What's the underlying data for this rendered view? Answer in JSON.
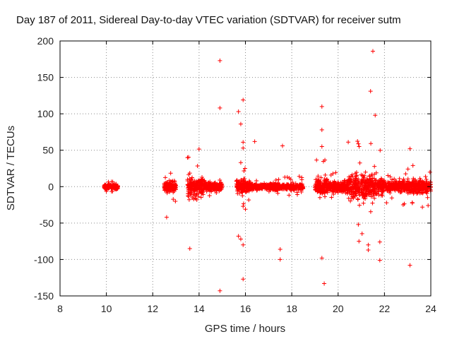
{
  "chart_data": {
    "type": "scatter",
    "title": "Day 187 of 2011, Sidereal Day-to-day VTEC variation (SDTVAR) for receiver sutm",
    "xlabel": "GPS time / hours",
    "ylabel": "SDTVAR / TECUs",
    "xlim": [
      8,
      24
    ],
    "ylim": [
      -150,
      200
    ],
    "xticks": [
      8,
      10,
      12,
      14,
      16,
      18,
      20,
      22,
      24
    ],
    "yticks": [
      -150,
      -100,
      -50,
      0,
      50,
      100,
      150,
      200
    ],
    "grid": true,
    "marker": "+",
    "color": "#ff0000",
    "clusters": [
      {
        "x_range": [
          9.9,
          10.5
        ],
        "spread": 5,
        "tail": 8
      },
      {
        "x_range": [
          12.5,
          13.0
        ],
        "spread": 10,
        "tail": 25
      },
      {
        "x_range": [
          13.5,
          14.2
        ],
        "spread": 20,
        "tail": 60
      },
      {
        "x_range": [
          14.2,
          15.0
        ],
        "spread": 8,
        "tail": 15
      },
      {
        "x_range": [
          15.6,
          16.2
        ],
        "spread": 12,
        "tail": 30
      },
      {
        "x_range": [
          16.2,
          17.5
        ],
        "spread": 6,
        "tail": 10
      },
      {
        "x_range": [
          17.5,
          18.5
        ],
        "spread": 5,
        "tail": 15
      },
      {
        "x_range": [
          19.0,
          19.6
        ],
        "spread": 15,
        "tail": 40
      },
      {
        "x_range": [
          19.6,
          20.4
        ],
        "spread": 10,
        "tail": 20
      },
      {
        "x_range": [
          20.4,
          21.2
        ],
        "spread": 25,
        "tail": 75
      },
      {
        "x_range": [
          21.2,
          21.9
        ],
        "spread": 20,
        "tail": 60
      },
      {
        "x_range": [
          21.9,
          23.0
        ],
        "spread": 10,
        "tail": 25
      },
      {
        "x_range": [
          23.0,
          24.0
        ],
        "spread": 12,
        "tail": 30
      }
    ],
    "outliers": [
      {
        "x": 14.9,
        "y": 173
      },
      {
        "x": 14.9,
        "y": 108
      },
      {
        "x": 14.9,
        "y": -143
      },
      {
        "x": 13.6,
        "y": -85
      },
      {
        "x": 15.7,
        "y": 103
      },
      {
        "x": 15.9,
        "y": 119
      },
      {
        "x": 15.9,
        "y": 61
      },
      {
        "x": 15.8,
        "y": 86
      },
      {
        "x": 15.8,
        "y": -72
      },
      {
        "x": 15.9,
        "y": -80
      },
      {
        "x": 15.9,
        "y": -127
      },
      {
        "x": 16.4,
        "y": 62
      },
      {
        "x": 17.5,
        "y": -86
      },
      {
        "x": 17.5,
        "y": -100
      },
      {
        "x": 19.3,
        "y": 110
      },
      {
        "x": 19.3,
        "y": 78
      },
      {
        "x": 19.3,
        "y": -98
      },
      {
        "x": 19.4,
        "y": -133
      },
      {
        "x": 21.5,
        "y": 186
      },
      {
        "x": 21.4,
        "y": 131
      },
      {
        "x": 21.6,
        "y": 98
      },
      {
        "x": 21.3,
        "y": -80
      },
      {
        "x": 21.3,
        "y": -87
      },
      {
        "x": 21.8,
        "y": -76
      },
      {
        "x": 21.8,
        "y": -101
      },
      {
        "x": 23.1,
        "y": -108
      },
      {
        "x": 23.1,
        "y": 52
      },
      {
        "x": 20.9,
        "y": -75
      },
      {
        "x": 15.7,
        "y": -68
      },
      {
        "x": 16.0,
        "y": -31
      },
      {
        "x": 15.9,
        "y": -27
      },
      {
        "x": 15.8,
        "y": 33
      },
      {
        "x": 15.9,
        "y": 53
      },
      {
        "x": 17.6,
        "y": 56
      },
      {
        "x": 19.3,
        "y": 55
      },
      {
        "x": 12.6,
        "y": -42
      }
    ]
  }
}
